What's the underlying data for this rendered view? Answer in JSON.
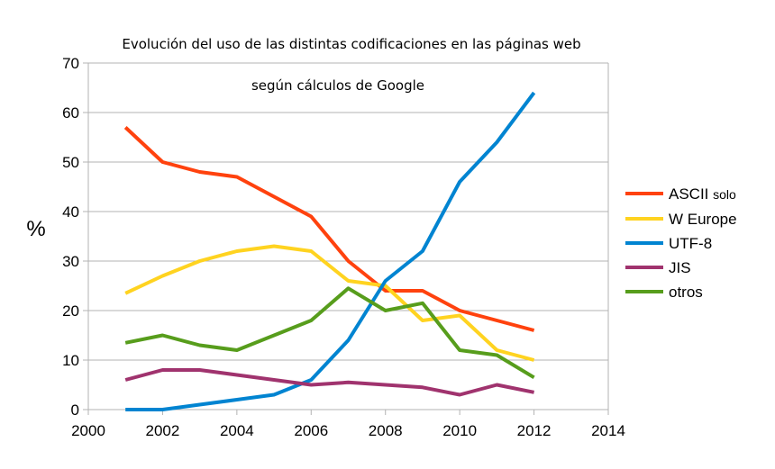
{
  "chart_data": {
    "type": "line",
    "title": "Evolución del uso de las distintas codificaciones en las páginas web",
    "subtitle": "según cálculos de Google",
    "xlabel": "",
    "ylabel": "%",
    "xlim": [
      2000,
      2014
    ],
    "ylim": [
      0,
      70
    ],
    "x_ticks": [
      2000,
      2002,
      2004,
      2006,
      2008,
      2010,
      2012,
      2014
    ],
    "y_ticks": [
      0,
      10,
      20,
      30,
      40,
      50,
      60,
      70
    ],
    "grid": "horizontal",
    "legend_position": "right",
    "x": [
      2001,
      2002,
      2003,
      2004,
      2005,
      2006,
      2007,
      2008,
      2009,
      2010,
      2011,
      2012
    ],
    "series": [
      {
        "name": "ASCII",
        "name_suffix": "solo",
        "color": "#ff420e",
        "values": [
          57,
          50,
          48,
          47,
          43,
          39,
          30,
          24,
          24,
          20,
          18,
          16
        ]
      },
      {
        "name": "W Europe",
        "color": "#ffd320",
        "values": [
          23.5,
          27,
          30,
          32,
          33,
          32,
          26,
          25,
          18,
          19,
          12,
          10
        ]
      },
      {
        "name": "UTF-8",
        "color": "#0084d1",
        "values": [
          0,
          0,
          1,
          2,
          3,
          6,
          14,
          26,
          32,
          46,
          54,
          64
        ]
      },
      {
        "name": "JIS",
        "color": "#a0336e",
        "values": [
          6,
          8,
          8,
          7,
          6,
          5,
          5.5,
          5,
          4.5,
          3,
          5,
          3.5
        ]
      },
      {
        "name": "otros",
        "color": "#579d1c",
        "values": [
          13.5,
          15,
          13,
          12,
          15,
          18,
          24.5,
          20,
          21.5,
          12,
          11,
          6.5
        ]
      }
    ]
  }
}
